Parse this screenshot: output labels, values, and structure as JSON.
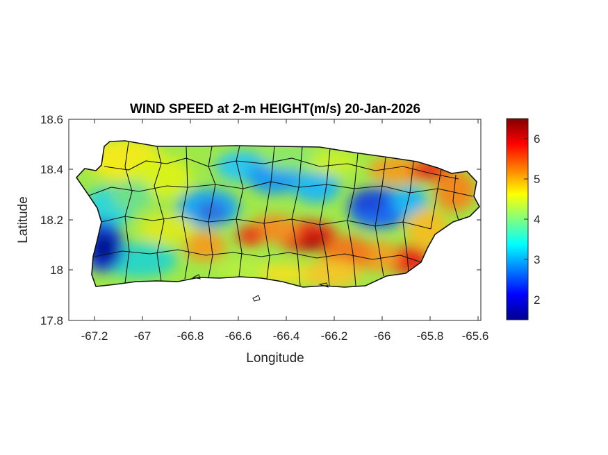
{
  "title": "WIND SPEED at 2-m HEIGHT(m/s) 20-Jan-2026",
  "xlabel": "Longitude",
  "ylabel": "Latitude",
  "xticks": [
    "-67.2",
    "-67",
    "-66.8",
    "-66.6",
    "-66.4",
    "-66.2",
    "-66",
    "-65.8",
    "-65.6"
  ],
  "yticks": [
    "18.6",
    "18.4",
    "18.2",
    "18",
    "17.8"
  ],
  "colorbar": {
    "ticks": [
      "6",
      "5",
      "4",
      "3",
      "2"
    ],
    "min": 1.5,
    "max": 6.5,
    "colormap": "jet"
  },
  "chart_data": {
    "type": "heatmap",
    "title": "WIND SPEED at 2-m HEIGHT(m/s) 20-Jan-2026",
    "xlabel": "Longitude",
    "ylabel": "Latitude",
    "xlim": [
      -67.3,
      -65.58
    ],
    "ylim": [
      17.8,
      18.6
    ],
    "clim": [
      1.5,
      6.5
    ],
    "colormap": "jet",
    "region": "Puerto Rico",
    "features": [
      {
        "lon": -67.12,
        "lat": 18.1,
        "value": 1.7
      },
      {
        "lon": -66.72,
        "lat": 18.24,
        "value": 3.0
      },
      {
        "lon": -66.42,
        "lat": 18.35,
        "value": 3.1
      },
      {
        "lon": -66.0,
        "lat": 18.27,
        "value": 2.6
      },
      {
        "lon": -66.3,
        "lat": 18.12,
        "value": 6.2
      },
      {
        "lon": -66.55,
        "lat": 18.15,
        "value": 5.8
      },
      {
        "lon": -65.88,
        "lat": 18.05,
        "value": 6.3
      },
      {
        "lon": -65.82,
        "lat": 18.41,
        "value": 6.1
      },
      {
        "lon": -66.85,
        "lat": 18.12,
        "value": 5.0
      },
      {
        "lon": -66.98,
        "lat": 18.35,
        "value": 4.2
      }
    ]
  }
}
